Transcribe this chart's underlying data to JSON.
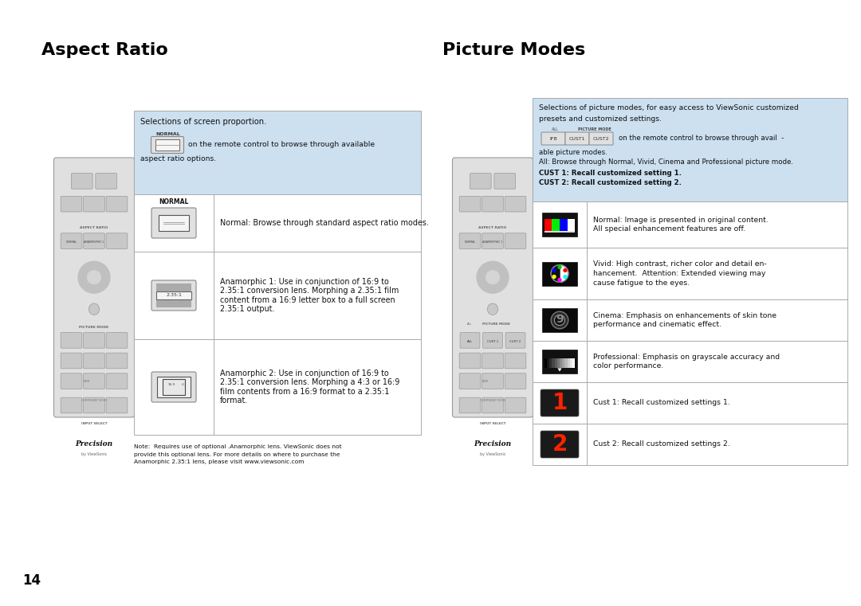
{
  "title_left": "Aspect Ratio",
  "title_right": "Picture Modes",
  "bg_color": "#ffffff",
  "title_font_size": 16,
  "body_font_size": 7.2,
  "small_font_size": 6.0,
  "header_bg": "#cce0f0",
  "page_number": "14",
  "aspect_ratio": {
    "rows": [
      {
        "icon_type": "normal_aspect",
        "text": "Normal: Browse through standard aspect ratio modes."
      },
      {
        "icon_type": "anamorphic1",
        "text": "Anamorphic 1: Use in conjunction of 16:9 to\n2.35:1 conversion lens. Morphing a 2.35:1 film\ncontent from a 16:9 letter box to a full screen\n2.35:1 output."
      },
      {
        "icon_type": "anamorphic2",
        "text": "Anamorphic 2: Use in conjunction of 16:9 to\n2.35:1 conversion lens. Morphing a 4:3 or 16:9\nfilm contents from a 16:9 format to a 2.35:1\nformat."
      }
    ],
    "note": "Note:  Requires use of optional .Anamorphic lens. ViewSonic does not\nprovide this optional lens. For more details on where to purchase the\nAnamorphic 2.35:1 lens, please visit www.viewsonic.com"
  },
  "picture_modes": {
    "rows": [
      {
        "icon_type": "normal_screen",
        "text": "Normal: Image is presented in original content.\nAll special enhancement features are off."
      },
      {
        "icon_type": "vivid",
        "text": "Vivid: High contrast, richer color and detail en-\nhancement.  Attention: Extended viewing may\ncause fatigue to the eyes."
      },
      {
        "icon_type": "cinema",
        "text": "Cinema: Emphasis on enhancements of skin tone\nperformance and cinematic effect."
      },
      {
        "icon_type": "professional",
        "text": "Professional: Emphasis on grayscale accuracy and\ncolor performance."
      },
      {
        "icon_type": "cust1",
        "text": "Cust 1: Recall customized settings 1."
      },
      {
        "icon_type": "cust2",
        "text": "Cust 2: Recall customized settings 2."
      }
    ]
  }
}
